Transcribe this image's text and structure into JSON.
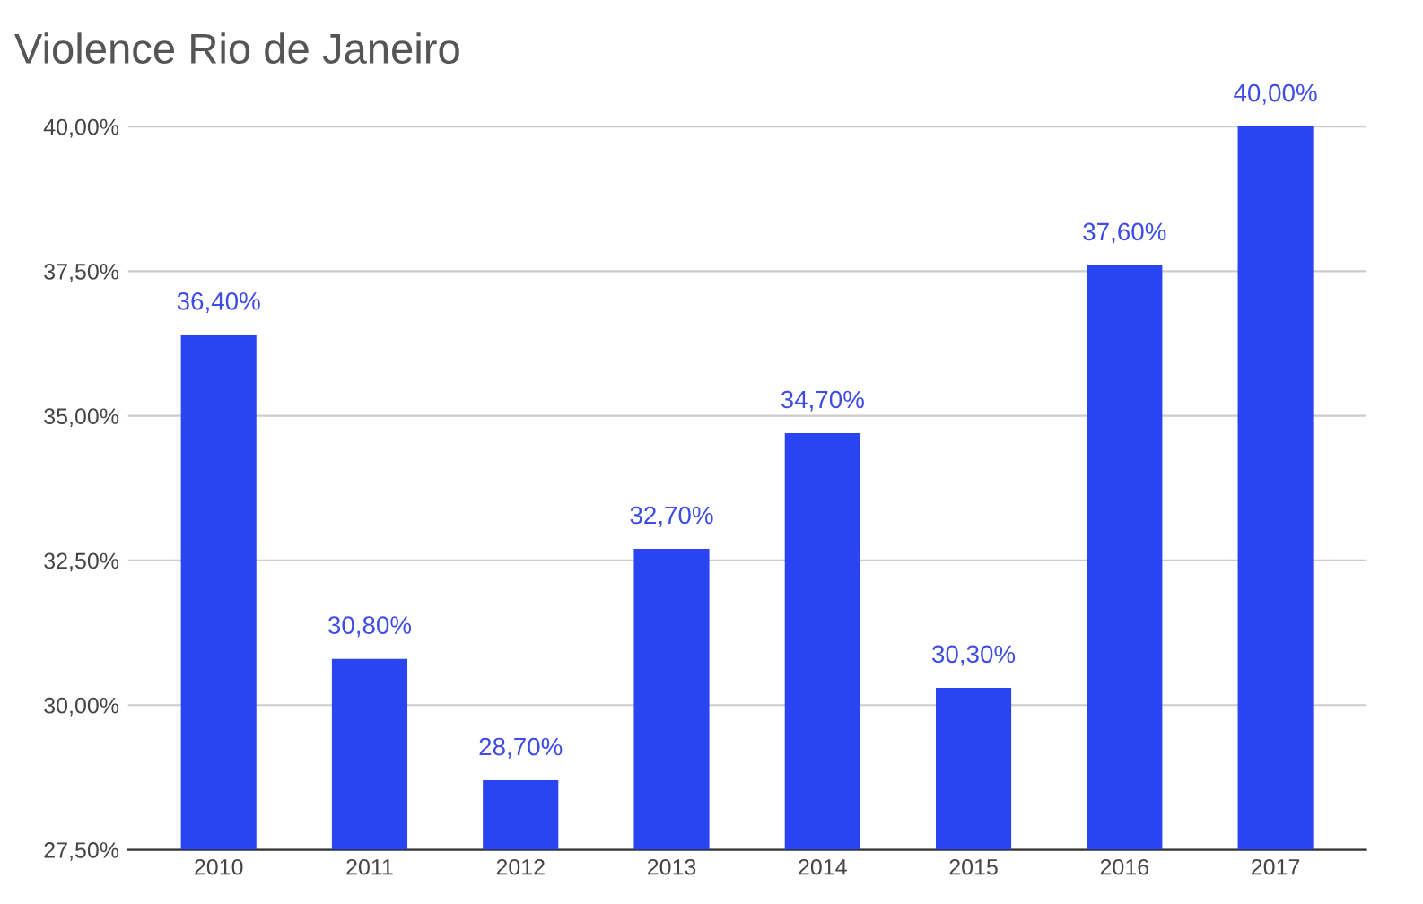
{
  "chart_data": {
    "type": "bar",
    "title": "Violence Rio de Janeiro",
    "categories": [
      "2010",
      "2011",
      "2012",
      "2013",
      "2014",
      "2015",
      "2016",
      "2017"
    ],
    "values": [
      36.4,
      30.8,
      28.7,
      32.7,
      34.7,
      30.3,
      37.6,
      40.0
    ],
    "value_labels": [
      "36,40%",
      "30,80%",
      "28,70%",
      "32,70%",
      "34,70%",
      "30,30%",
      "37,60%",
      "40,00%"
    ],
    "color": "#2b44f2",
    "ylim": [
      27.5,
      40
    ],
    "yticks": [
      {
        "value": 27.5,
        "label": "27,50%"
      },
      {
        "value": 30,
        "label": "30,00%"
      },
      {
        "value": 32.5,
        "label": "32,50%"
      },
      {
        "value": 35,
        "label": "35,00%"
      },
      {
        "value": 37.5,
        "label": "37,50%"
      },
      {
        "value": 40,
        "label": "40,00%"
      }
    ],
    "grid": "y"
  }
}
